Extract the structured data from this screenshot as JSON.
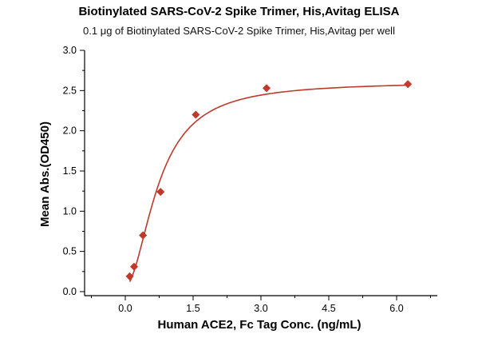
{
  "chart_data": {
    "type": "scatter",
    "title": "Biotinylated SARS-CoV-2 Spike Trimer, His,Avitag ELISA",
    "subtitle": "0.1 μg of Biotinylated SARS-CoV-2 Spike Trimer, His,Avitag per well",
    "xlabel": "Human ACE2, Fc Tag Conc. (ng/mL)",
    "ylabel": "Mean Abs.(OD450)",
    "xlim": [
      -0.9,
      6.9
    ],
    "ylim": [
      -0.05,
      3.0
    ],
    "xticks": [
      "0.0",
      "1.5",
      "3.0",
      "4.5",
      "6.0"
    ],
    "yticks": [
      "0.0",
      "0.5",
      "1.0",
      "1.5",
      "2.0",
      "2.5",
      "3.0"
    ],
    "grid": false,
    "color": "#c0392b",
    "series": [
      {
        "x": [
          0.098,
          0.195,
          0.39,
          0.78,
          1.56,
          3.125,
          6.25
        ],
        "y": [
          0.19,
          0.31,
          0.7,
          1.24,
          2.2,
          2.53,
          2.58
        ]
      }
    ],
    "fit_curve": {
      "type": "4PL",
      "bottom": 0.07,
      "top": 2.61,
      "ec50": 0.74,
      "hill": 1.9
    }
  }
}
